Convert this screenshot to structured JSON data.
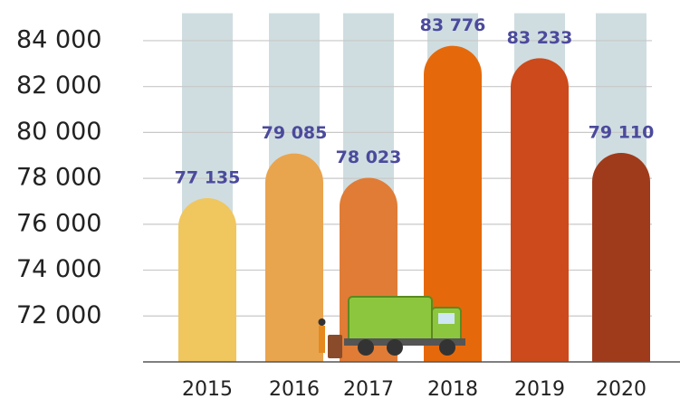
{
  "chart_data": {
    "type": "bar",
    "categories": [
      "2015",
      "2016",
      "2017",
      "2018",
      "2019",
      "2020"
    ],
    "values": [
      77135,
      79085,
      78023,
      83776,
      83233,
      79110
    ],
    "value_labels": [
      "77 135",
      "79 085",
      "78 023",
      "83 776",
      "83 233",
      "79 110"
    ],
    "colors": [
      "#f0c65e",
      "#e9a44e",
      "#e07c36",
      "#e5690b",
      "#cc4a1b",
      "#9f3b1b"
    ],
    "ylim": [
      70000,
      85000
    ],
    "yticks": [
      {
        "value": 72000,
        "label": "72 000"
      },
      {
        "value": 74000,
        "label": "74 000"
      },
      {
        "value": 76000,
        "label": "76 000"
      },
      {
        "value": 78000,
        "label": "78 000"
      },
      {
        "value": 80000,
        "label": "80 000"
      },
      {
        "value": 82000,
        "label": "82 000"
      },
      {
        "value": 84000,
        "label": "84 000"
      }
    ],
    "grid": true
  }
}
